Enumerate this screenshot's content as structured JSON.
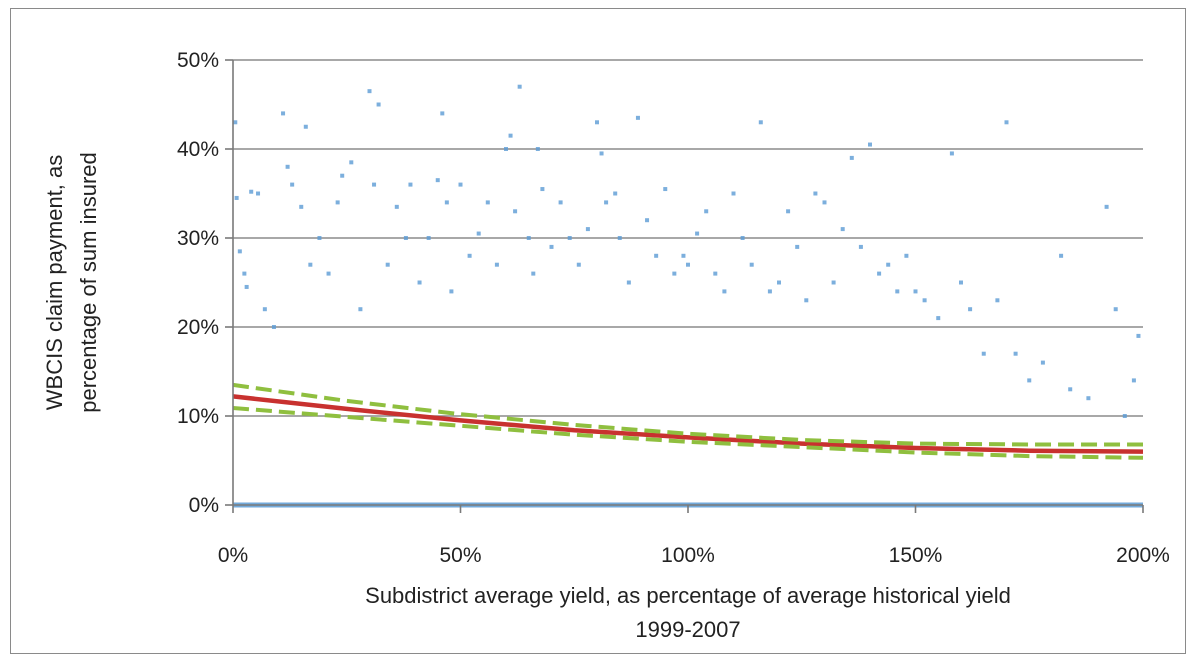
{
  "chart_data": {
    "type": "scatter",
    "xlabel_lines": [
      "Subdistrict average yield, as percentage of average historical yield",
      "1999-2007"
    ],
    "ylabel_lines": [
      "WBCIS claim payment, as",
      "percentage of sum insured"
    ],
    "xlim": [
      0,
      200
    ],
    "ylim": [
      0,
      50
    ],
    "x_ticks": [
      0,
      50,
      100,
      150,
      200
    ],
    "x_tick_labels": [
      "0%",
      "50%",
      "100%",
      "150%",
      "200%"
    ],
    "y_ticks": [
      0,
      10,
      20,
      30,
      40,
      50
    ],
    "y_tick_labels": [
      "0%",
      "10%",
      "20%",
      "30%",
      "40%",
      "50%"
    ],
    "grid": "horizontal",
    "legend": "none",
    "series": [
      {
        "kind": "scatter",
        "color": "#5b9bd5",
        "points": [
          [
            0.5,
            43
          ],
          [
            0.8,
            34.5
          ],
          [
            1.5,
            28.5
          ],
          [
            2.5,
            26
          ],
          [
            3,
            24.5
          ],
          [
            4,
            35.2
          ],
          [
            5.5,
            35
          ],
          [
            7,
            22
          ],
          [
            9,
            20
          ],
          [
            11,
            44
          ],
          [
            12,
            38
          ],
          [
            13,
            36
          ],
          [
            15,
            33.5
          ],
          [
            16,
            42.5
          ],
          [
            17,
            27
          ],
          [
            19,
            30
          ],
          [
            21,
            26
          ],
          [
            23,
            34
          ],
          [
            24,
            37
          ],
          [
            26,
            38.5
          ],
          [
            28,
            22
          ],
          [
            30,
            46.5
          ],
          [
            31,
            36
          ],
          [
            32,
            45
          ],
          [
            34,
            27
          ],
          [
            36,
            33.5
          ],
          [
            38,
            30
          ],
          [
            39,
            36
          ],
          [
            41,
            25
          ],
          [
            43,
            30
          ],
          [
            45,
            36.5
          ],
          [
            46,
            44
          ],
          [
            47,
            34
          ],
          [
            48,
            24
          ],
          [
            50,
            36
          ],
          [
            52,
            28
          ],
          [
            54,
            30.5
          ],
          [
            56,
            34
          ],
          [
            58,
            27
          ],
          [
            60,
            40
          ],
          [
            61,
            41.5
          ],
          [
            62,
            33
          ],
          [
            63,
            47
          ],
          [
            65,
            30
          ],
          [
            66,
            26
          ],
          [
            67,
            40
          ],
          [
            68,
            35.5
          ],
          [
            70,
            29
          ],
          [
            72,
            34
          ],
          [
            74,
            30
          ],
          [
            76,
            27
          ],
          [
            78,
            31
          ],
          [
            80,
            43
          ],
          [
            81,
            39.5
          ],
          [
            82,
            34
          ],
          [
            84,
            35
          ],
          [
            85,
            30
          ],
          [
            87,
            25
          ],
          [
            89,
            43.5
          ],
          [
            91,
            32
          ],
          [
            93,
            28
          ],
          [
            95,
            35.5
          ],
          [
            97,
            26
          ],
          [
            99,
            28
          ],
          [
            100,
            27
          ],
          [
            102,
            30.5
          ],
          [
            104,
            33
          ],
          [
            106,
            26
          ],
          [
            108,
            24
          ],
          [
            110,
            35
          ],
          [
            112,
            30
          ],
          [
            114,
            27
          ],
          [
            116,
            43
          ],
          [
            118,
            24
          ],
          [
            120,
            25
          ],
          [
            122,
            33
          ],
          [
            124,
            29
          ],
          [
            126,
            23
          ],
          [
            128,
            35
          ],
          [
            130,
            34
          ],
          [
            132,
            25
          ],
          [
            134,
            31
          ],
          [
            136,
            39
          ],
          [
            138,
            29
          ],
          [
            140,
            40.5
          ],
          [
            142,
            26
          ],
          [
            144,
            27
          ],
          [
            146,
            24
          ],
          [
            148,
            28
          ],
          [
            150,
            24
          ],
          [
            152,
            23
          ],
          [
            155,
            21
          ],
          [
            158,
            39.5
          ],
          [
            160,
            25
          ],
          [
            162,
            22
          ],
          [
            165,
            17
          ],
          [
            168,
            23
          ],
          [
            170,
            43
          ],
          [
            172,
            17
          ],
          [
            175,
            14
          ],
          [
            178,
            16
          ],
          [
            182,
            28
          ],
          [
            184,
            13
          ],
          [
            188,
            12
          ],
          [
            192,
            33.5
          ],
          [
            194,
            22
          ],
          [
            196,
            10
          ],
          [
            198,
            14
          ],
          [
            199,
            19
          ]
        ]
      },
      {
        "kind": "line",
        "color": "#c8312f",
        "points": [
          [
            0,
            12.2
          ],
          [
            25,
            10.8
          ],
          [
            50,
            9.5
          ],
          [
            75,
            8.4
          ],
          [
            100,
            7.6
          ],
          [
            125,
            6.9
          ],
          [
            150,
            6.4
          ],
          [
            175,
            6.1
          ],
          [
            200,
            6.0
          ]
        ]
      },
      {
        "kind": "line",
        "style": "dashed",
        "color": "#8fbf3f",
        "points": [
          [
            0,
            13.5
          ],
          [
            25,
            11.7
          ],
          [
            50,
            10.2
          ],
          [
            75,
            9.0
          ],
          [
            100,
            8.0
          ],
          [
            125,
            7.3
          ],
          [
            150,
            6.9
          ],
          [
            175,
            6.8
          ],
          [
            200,
            6.8
          ]
        ]
      },
      {
        "kind": "line",
        "style": "dashed",
        "color": "#8fbf3f",
        "points": [
          [
            0,
            10.9
          ],
          [
            25,
            9.9
          ],
          [
            50,
            8.9
          ],
          [
            75,
            7.9
          ],
          [
            100,
            7.1
          ],
          [
            125,
            6.5
          ],
          [
            150,
            5.9
          ],
          [
            175,
            5.5
          ],
          [
            200,
            5.3
          ]
        ]
      }
    ]
  }
}
